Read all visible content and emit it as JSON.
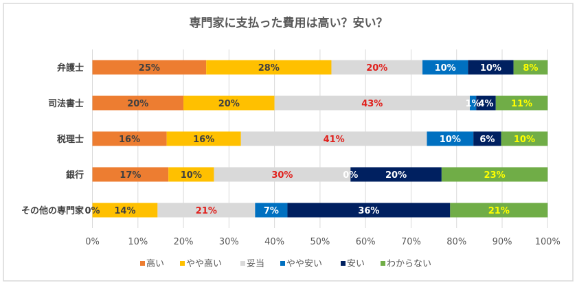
{
  "chart_data": {
    "type": "bar",
    "orientation": "horizontal",
    "stacking": "percent",
    "title": "専門家に支払った費用は高い？安い？",
    "xlabel": "",
    "ylabel": "",
    "xlim": [
      0,
      100
    ],
    "x_ticks": [
      "0%",
      "10%",
      "20%",
      "30%",
      "40%",
      "50%",
      "60%",
      "70%",
      "80%",
      "90%",
      "100%"
    ],
    "grid": true,
    "legend": "bottom",
    "categories": [
      "弁護士",
      "司法書士",
      "税理士",
      "銀行",
      "その他の専門家"
    ],
    "series": [
      {
        "name": "高い",
        "color": "#ed7d31",
        "label_color": "#404040",
        "values": [
          25,
          20,
          16.3,
          16.7,
          0
        ],
        "labels": [
          "25%",
          "20%",
          "16%",
          "17%",
          "0%"
        ]
      },
      {
        "name": "やや高い",
        "color": "#ffc000",
        "label_color": "#404040",
        "values": [
          27.5,
          20,
          16.3,
          10,
          14.3
        ],
        "labels": [
          "28%",
          "20%",
          "16%",
          "10%",
          "14%"
        ]
      },
      {
        "name": "妥当",
        "color": "#d9d9d9",
        "label_color": "#e0201c",
        "values": [
          20,
          42.9,
          40.8,
          30,
          21.4
        ],
        "labels": [
          "20%",
          "43%",
          "41%",
          "30%",
          "21%"
        ]
      },
      {
        "name": "やや安い",
        "color": "#0070c0",
        "label_color": "#ffffff",
        "values": [
          10,
          1.4,
          10.2,
          0,
          7.1
        ],
        "labels": [
          "10%",
          "1%",
          "10%",
          "0%",
          "7%"
        ]
      },
      {
        "name": "安い",
        "color": "#002060",
        "label_color": "#ffffff",
        "values": [
          10,
          4.3,
          6.1,
          20,
          35.7
        ],
        "labels": [
          "10%",
          "4%",
          "6%",
          "20%",
          "36%"
        ]
      },
      {
        "name": "わからない",
        "color": "#70ad47",
        "label_color": "#ffff00",
        "values": [
          7.5,
          11.4,
          10.2,
          23.3,
          21.4
        ],
        "labels": [
          "8%",
          "11%",
          "10%",
          "23%",
          "21%"
        ]
      }
    ]
  }
}
